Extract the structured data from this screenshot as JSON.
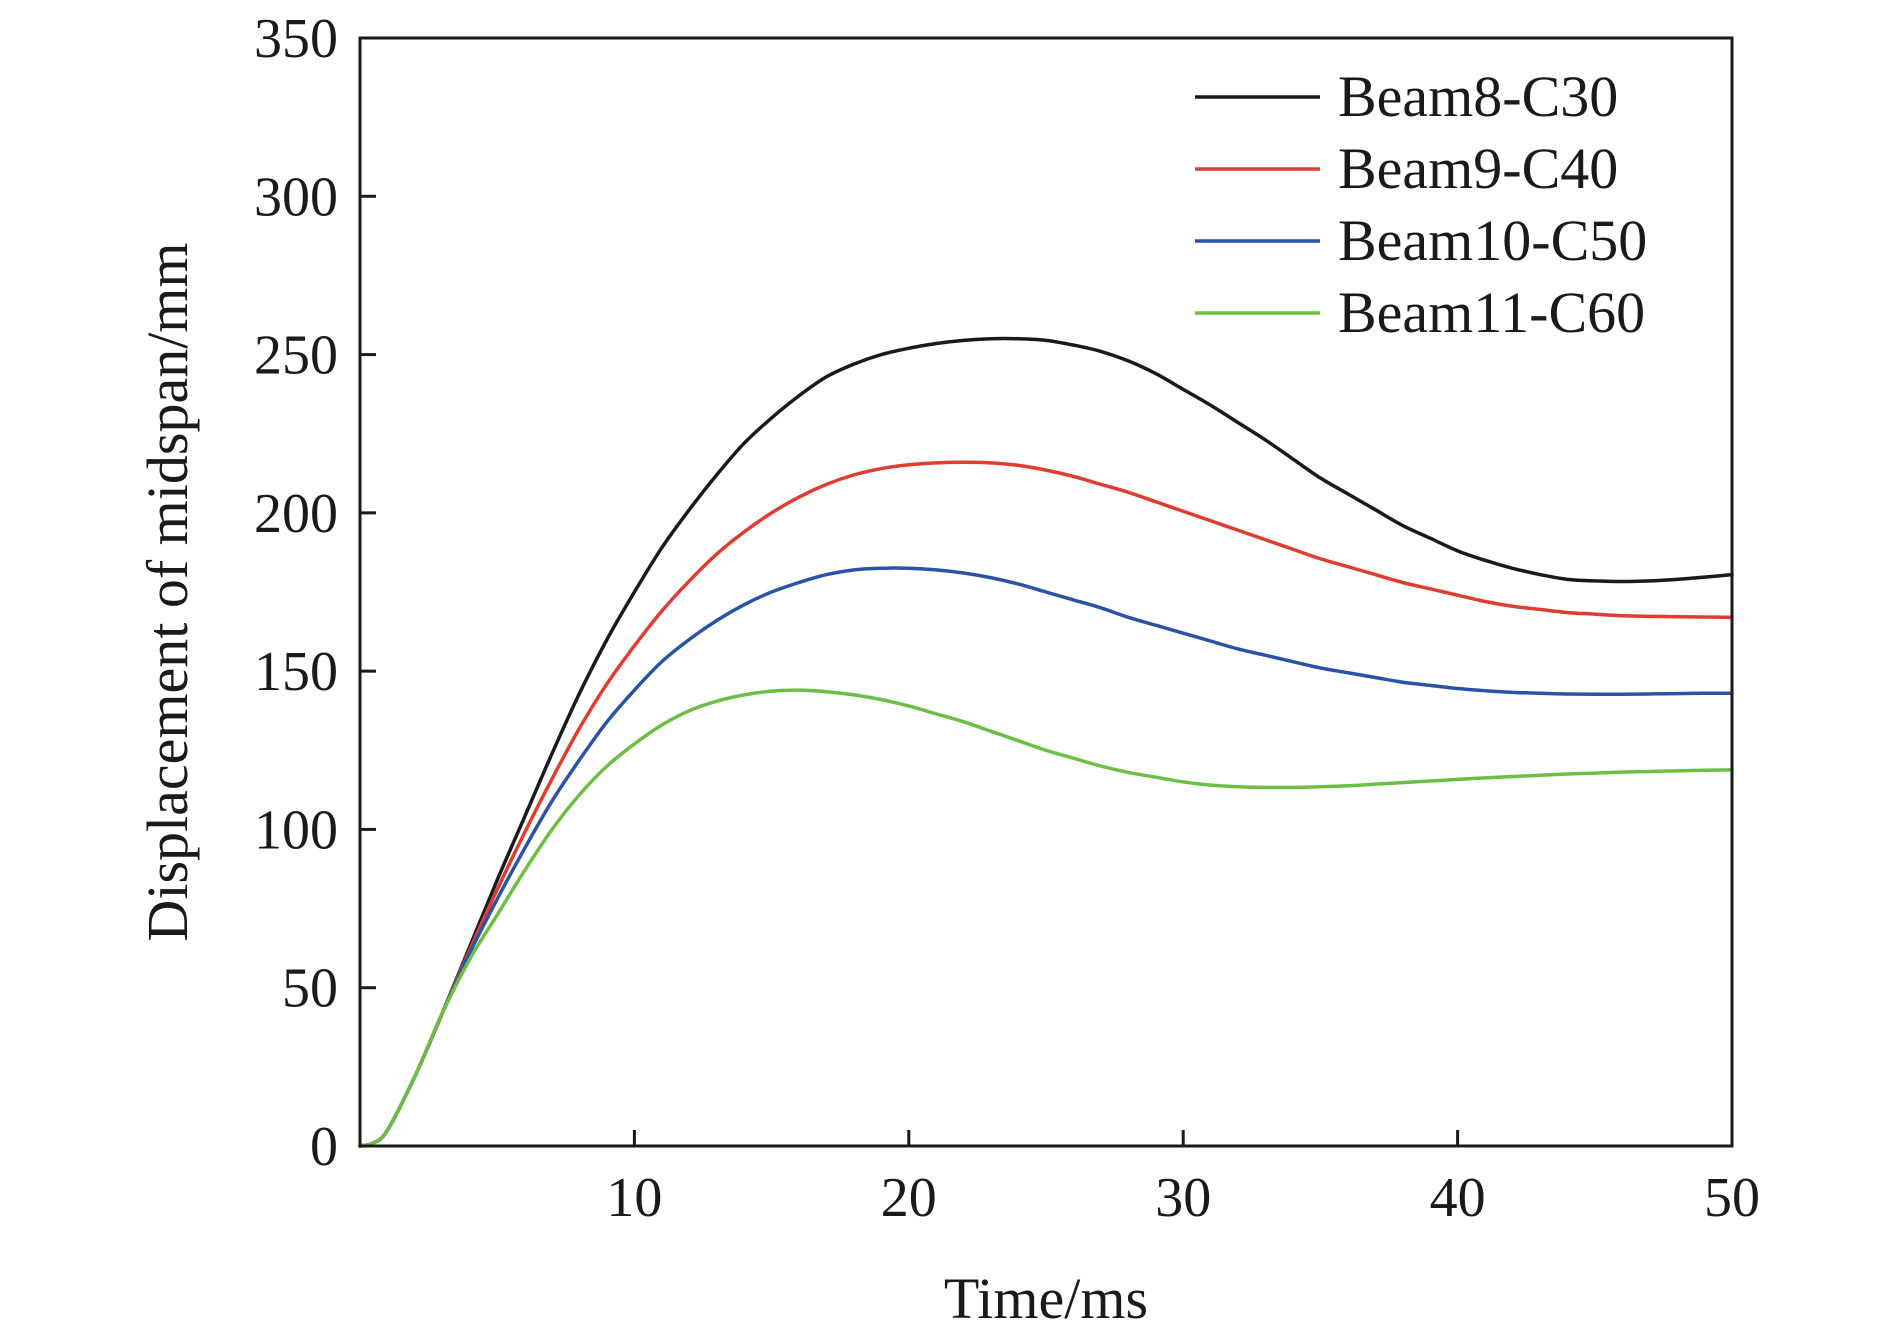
{
  "chart_data": {
    "type": "line",
    "title": "",
    "xlabel": "Time/ms",
    "ylabel": "Displacement of midspan/mm",
    "xlim": [
      0,
      50
    ],
    "ylim": [
      0,
      350
    ],
    "xticks": [
      10,
      20,
      30,
      40,
      50
    ],
    "yticks": [
      0,
      50,
      100,
      150,
      200,
      250,
      300,
      350
    ],
    "grid": false,
    "legend_position": "top-right",
    "series": [
      {
        "name": "Beam8-C30",
        "color": "#1a1a1a",
        "points": [
          [
            0,
            0
          ],
          [
            0.5,
            1
          ],
          [
            1,
            5
          ],
          [
            2,
            22
          ],
          [
            3,
            42
          ],
          [
            4,
            63
          ],
          [
            5,
            84
          ],
          [
            6,
            104
          ],
          [
            7,
            124
          ],
          [
            8,
            143
          ],
          [
            9,
            160
          ],
          [
            10,
            175
          ],
          [
            11,
            189
          ],
          [
            12,
            201
          ],
          [
            13,
            212
          ],
          [
            14,
            222
          ],
          [
            15,
            230
          ],
          [
            16,
            237
          ],
          [
            17,
            243
          ],
          [
            18,
            247
          ],
          [
            19,
            250
          ],
          [
            20,
            252
          ],
          [
            21,
            253.5
          ],
          [
            22,
            254.5
          ],
          [
            23,
            255
          ],
          [
            24,
            255
          ],
          [
            25,
            254.5
          ],
          [
            26,
            253
          ],
          [
            27,
            251
          ],
          [
            28,
            248
          ],
          [
            29,
            244
          ],
          [
            30,
            239
          ],
          [
            31,
            234
          ],
          [
            32,
            228.5
          ],
          [
            33,
            223
          ],
          [
            34,
            217
          ],
          [
            35,
            211
          ],
          [
            36,
            206
          ],
          [
            37,
            201
          ],
          [
            38,
            196
          ],
          [
            39,
            192
          ],
          [
            40,
            188
          ],
          [
            41,
            185
          ],
          [
            42,
            182.5
          ],
          [
            43,
            180.5
          ],
          [
            44,
            179
          ],
          [
            45,
            178.5
          ],
          [
            46,
            178.3
          ],
          [
            47,
            178.5
          ],
          [
            48,
            179
          ],
          [
            49,
            179.7
          ],
          [
            50,
            180.5
          ]
        ]
      },
      {
        "name": "Beam9-C40",
        "color": "#e03c31",
        "points": [
          [
            0,
            0
          ],
          [
            0.5,
            1
          ],
          [
            1,
            5
          ],
          [
            2,
            22
          ],
          [
            3,
            42
          ],
          [
            4,
            62
          ],
          [
            5,
            81
          ],
          [
            6,
            99
          ],
          [
            7,
            116
          ],
          [
            8,
            132
          ],
          [
            9,
            146
          ],
          [
            10,
            158
          ],
          [
            11,
            169
          ],
          [
            12,
            178.5
          ],
          [
            13,
            187
          ],
          [
            14,
            194
          ],
          [
            15,
            200
          ],
          [
            16,
            205
          ],
          [
            17,
            209
          ],
          [
            18,
            212
          ],
          [
            19,
            214
          ],
          [
            20,
            215.2
          ],
          [
            21,
            215.8
          ],
          [
            22,
            216
          ],
          [
            23,
            215.8
          ],
          [
            24,
            215
          ],
          [
            25,
            213.5
          ],
          [
            26,
            211.5
          ],
          [
            27,
            209
          ],
          [
            28,
            206.5
          ],
          [
            29,
            203.5
          ],
          [
            30,
            200.5
          ],
          [
            31,
            197.5
          ],
          [
            32,
            194.5
          ],
          [
            33,
            191.5
          ],
          [
            34,
            188.5
          ],
          [
            35,
            185.5
          ],
          [
            36,
            183
          ],
          [
            37,
            180.5
          ],
          [
            38,
            178
          ],
          [
            39,
            176
          ],
          [
            40,
            174
          ],
          [
            41,
            172
          ],
          [
            42,
            170.5
          ],
          [
            43,
            169.5
          ],
          [
            44,
            168.5
          ],
          [
            45,
            168
          ],
          [
            46,
            167.5
          ],
          [
            47,
            167.3
          ],
          [
            48,
            167.2
          ],
          [
            49,
            167.1
          ],
          [
            50,
            167
          ]
        ]
      },
      {
        "name": "Beam10-C50",
        "color": "#2a52a5",
        "points": [
          [
            0,
            0
          ],
          [
            0.5,
            1
          ],
          [
            1,
            5
          ],
          [
            2,
            22
          ],
          [
            3,
            42
          ],
          [
            4,
            61
          ],
          [
            5,
            78
          ],
          [
            6,
            94
          ],
          [
            7,
            109
          ],
          [
            8,
            122
          ],
          [
            9,
            134
          ],
          [
            10,
            144
          ],
          [
            11,
            153
          ],
          [
            12,
            160
          ],
          [
            13,
            166
          ],
          [
            14,
            171
          ],
          [
            15,
            175
          ],
          [
            16,
            178
          ],
          [
            17,
            180.5
          ],
          [
            18,
            182
          ],
          [
            19,
            182.5
          ],
          [
            20,
            182.5
          ],
          [
            21,
            182
          ],
          [
            22,
            181
          ],
          [
            23,
            179.5
          ],
          [
            24,
            177.5
          ],
          [
            25,
            175
          ],
          [
            26,
            172.5
          ],
          [
            27,
            170
          ],
          [
            28,
            167
          ],
          [
            29,
            164.5
          ],
          [
            30,
            162
          ],
          [
            31,
            159.5
          ],
          [
            32,
            157
          ],
          [
            33,
            155
          ],
          [
            34,
            153
          ],
          [
            35,
            151
          ],
          [
            36,
            149.5
          ],
          [
            37,
            148
          ],
          [
            38,
            146.5
          ],
          [
            39,
            145.5
          ],
          [
            40,
            144.5
          ],
          [
            41,
            143.8
          ],
          [
            42,
            143.3
          ],
          [
            43,
            143
          ],
          [
            44,
            142.8
          ],
          [
            45,
            142.7
          ],
          [
            46,
            142.7
          ],
          [
            47,
            142.8
          ],
          [
            48,
            142.9
          ],
          [
            49,
            143
          ],
          [
            50,
            143
          ]
        ]
      },
      {
        "name": "Beam11-C60",
        "color": "#6cbf44",
        "points": [
          [
            0,
            0
          ],
          [
            0.5,
            1
          ],
          [
            1,
            5
          ],
          [
            2,
            22
          ],
          [
            3,
            42
          ],
          [
            4,
            59
          ],
          [
            5,
            73
          ],
          [
            6,
            87
          ],
          [
            7,
            100
          ],
          [
            8,
            111
          ],
          [
            9,
            120
          ],
          [
            10,
            127
          ],
          [
            11,
            133
          ],
          [
            12,
            137.5
          ],
          [
            13,
            140.5
          ],
          [
            14,
            142.5
          ],
          [
            15,
            143.7
          ],
          [
            16,
            144
          ],
          [
            17,
            143.5
          ],
          [
            18,
            142.5
          ],
          [
            19,
            141
          ],
          [
            20,
            139
          ],
          [
            21,
            136.5
          ],
          [
            22,
            134
          ],
          [
            23,
            131
          ],
          [
            24,
            128
          ],
          [
            25,
            125
          ],
          [
            26,
            122.5
          ],
          [
            27,
            120
          ],
          [
            28,
            118
          ],
          [
            29,
            116.5
          ],
          [
            30,
            115
          ],
          [
            31,
            114
          ],
          [
            32,
            113.5
          ],
          [
            33,
            113.3
          ],
          [
            34,
            113.3
          ],
          [
            35,
            113.5
          ],
          [
            36,
            113.8
          ],
          [
            37,
            114.3
          ],
          [
            38,
            114.8
          ],
          [
            39,
            115.3
          ],
          [
            40,
            115.8
          ],
          [
            41,
            116.3
          ],
          [
            42,
            116.7
          ],
          [
            43,
            117.1
          ],
          [
            44,
            117.5
          ],
          [
            45,
            117.8
          ],
          [
            46,
            118.1
          ],
          [
            47,
            118.3
          ],
          [
            48,
            118.5
          ],
          [
            49,
            118.7
          ],
          [
            50,
            118.8
          ]
        ]
      }
    ]
  }
}
